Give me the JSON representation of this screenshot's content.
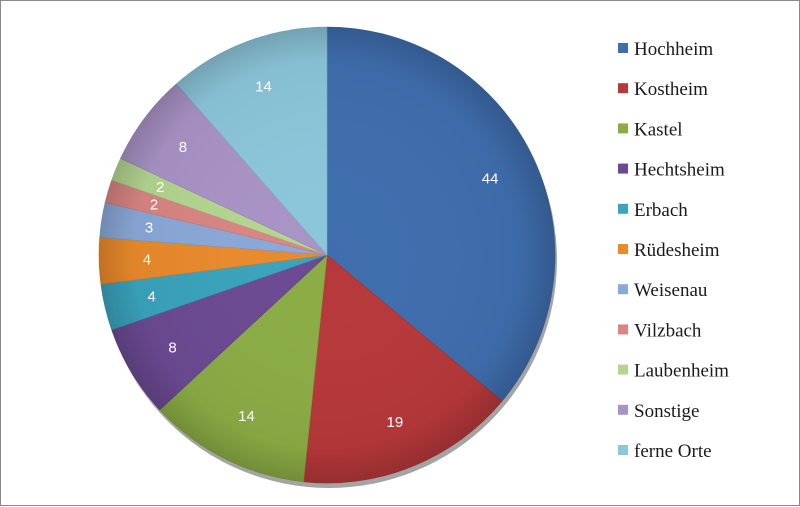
{
  "chart_data": {
    "type": "pie",
    "title": "",
    "legend_position": "right",
    "slices": [
      {
        "label": "Hochheim",
        "value": 44,
        "color": "#3f6eae"
      },
      {
        "label": "Kostheim",
        "value": 19,
        "color": "#b7383a"
      },
      {
        "label": "Kastel",
        "value": 14,
        "color": "#8bad45"
      },
      {
        "label": "Hechtsheim",
        "value": 8,
        "color": "#6c4a93"
      },
      {
        "label": "Erbach",
        "value": 4,
        "color": "#3aa3bd"
      },
      {
        "label": "Rüdesheim",
        "value": 4,
        "color": "#ea8a2c"
      },
      {
        "label": "Weisenau",
        "value": 3,
        "color": "#8aa8d8"
      },
      {
        "label": "Vilzbach",
        "value": 2,
        "color": "#d98583"
      },
      {
        "label": "Laubenheim",
        "value": 2,
        "color": "#b4d590"
      },
      {
        "label": "Sonstige",
        "value": 8,
        "color": "#a993c6"
      },
      {
        "label": "ferne Orte",
        "value": 14,
        "color": "#8cc6da"
      }
    ]
  }
}
